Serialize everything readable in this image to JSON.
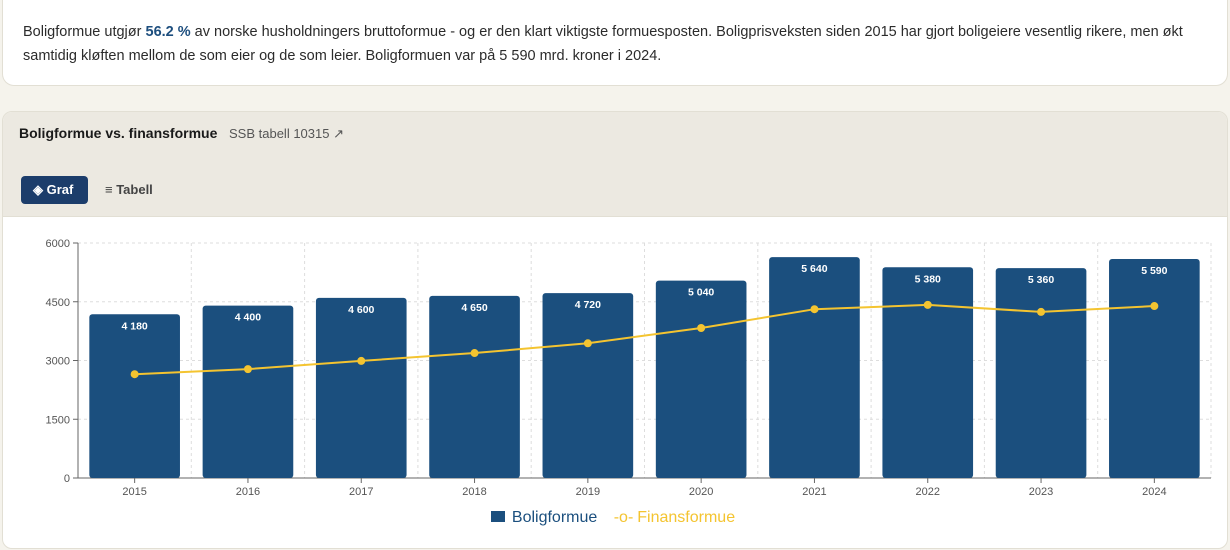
{
  "intro": {
    "pre": "Boligformue utgjør ",
    "highlight": "56.2 %",
    "post": " av norske husholdningers bruttoformue - og er den klart viktigste formuesposten. Boligprisveksten siden 2015 har gjort boligeiere vesentlig rikere, men økt samtidig kløften mellom de som eier og de som leier. Boligformuen var på 5 590 mrd. kroner i 2024."
  },
  "card": {
    "title": "Boligformue vs. finansformue",
    "source": "SSB tabell 10315 ↗",
    "tabs": [
      {
        "label": "◈ Graf",
        "active": true
      },
      {
        "label": "≡ Tabell",
        "active": false
      }
    ]
  },
  "colors": {
    "bar": "#1b4f7e",
    "line": "#f4c430"
  },
  "chart_data": {
    "type": "bar",
    "categories": [
      "2015",
      "2016",
      "2017",
      "2018",
      "2019",
      "2020",
      "2021",
      "2022",
      "2023",
      "2024"
    ],
    "series": [
      {
        "name": "Boligformue",
        "type": "bar",
        "values": [
          4180,
          4400,
          4600,
          4650,
          4720,
          5040,
          5640,
          5380,
          5360,
          5590
        ],
        "labels": [
          "4 180",
          "4 400",
          "4 600",
          "4 650",
          "4 720",
          "5 040",
          "5 640",
          "5 380",
          "5 360",
          "5 590"
        ]
      },
      {
        "name": "Finansformue",
        "type": "line",
        "values": [
          2650,
          2780,
          2990,
          3190,
          3440,
          3830,
          4310,
          4420,
          4240,
          4390
        ]
      }
    ],
    "yticks": [
      0,
      1500,
      3000,
      4500,
      6000
    ],
    "ylim": [
      0,
      6000
    ],
    "grid": true,
    "legend": "bottom-center"
  }
}
